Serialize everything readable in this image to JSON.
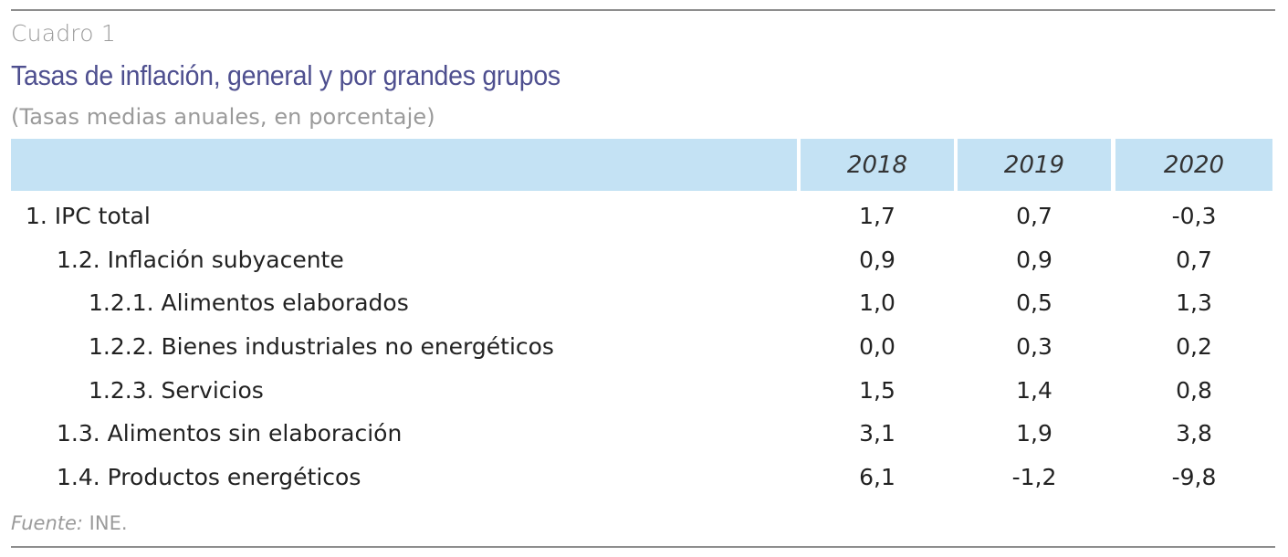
{
  "caption": "Cuadro 1",
  "title": "Tasas de inflación, general y por grandes grupos",
  "subtitle": "(Tasas medias anuales, en porcentaje)",
  "table": {
    "header_label": "",
    "years": [
      "2018",
      "2019",
      "2020"
    ],
    "rows": [
      {
        "label": "1. IPC total",
        "level": 0,
        "values": [
          "1,7",
          "0,7",
          "-0,3"
        ]
      },
      {
        "label": "1.2. Inflación subyacente",
        "level": 1,
        "values": [
          "0,9",
          "0,9",
          "0,7"
        ]
      },
      {
        "label": "1.2.1. Alimentos elaborados",
        "level": 2,
        "values": [
          "1,0",
          "0,5",
          "1,3"
        ]
      },
      {
        "label": "1.2.2. Bienes industriales no energéticos",
        "level": 2,
        "values": [
          "0,0",
          "0,3",
          "0,2"
        ]
      },
      {
        "label": "1.2.3. Servicios",
        "level": 2,
        "values": [
          "1,5",
          "1,4",
          "0,8"
        ]
      },
      {
        "label": "1.3. Alimentos sin elaboración",
        "level": 1,
        "values": [
          "3,1",
          "1,9",
          "3,8"
        ]
      },
      {
        "label": "1.4. Productos energéticos",
        "level": 1,
        "values": [
          "6,1",
          "-1,2",
          "-9,8"
        ]
      }
    ]
  },
  "source": {
    "label": "Fuente:",
    "text": " INE."
  },
  "colors": {
    "title": "#4e4f8f",
    "header_bg": "#c4e2f4",
    "muted_text": "#9a9a9a",
    "rule": "#8e8e8e"
  }
}
